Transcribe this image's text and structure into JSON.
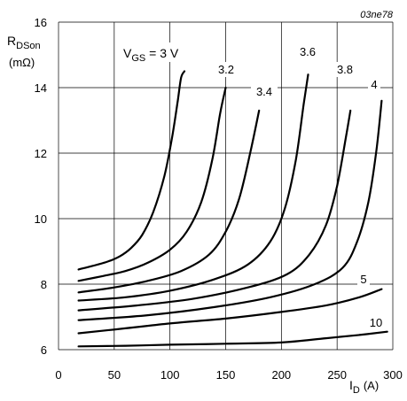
{
  "chart_data": {
    "type": "line",
    "figure_code": "03ne78",
    "ylabel_main": "R",
    "ylabel_sub": "DSon",
    "yunit": "(mΩ)",
    "xlabel_main": "I",
    "xlabel_sub": "D",
    "xunit": "(A)",
    "xlim": [
      0,
      300
    ],
    "ylim": [
      6,
      16
    ],
    "x_ticks": [
      0,
      50,
      100,
      150,
      200,
      250,
      300
    ],
    "y_ticks": [
      6,
      8,
      10,
      12,
      14,
      16
    ],
    "grid": true,
    "vgs_prefix_main": "V",
    "vgs_prefix_sub": "GS",
    "vgs_prefix_rest": " = 3 V",
    "series": [
      {
        "name": "3",
        "label": "",
        "x": [
          18,
          30,
          45,
          55,
          65,
          75,
          85,
          95,
          102,
          107,
          110,
          113
        ],
        "y": [
          8.45,
          8.55,
          8.7,
          8.85,
          9.1,
          9.5,
          10.2,
          11.3,
          12.5,
          13.6,
          14.3,
          14.5
        ]
      },
      {
        "name": "3.2",
        "label": "3.2",
        "x": [
          18,
          40,
          60,
          80,
          100,
          115,
          128,
          138,
          145,
          150
        ],
        "y": [
          8.1,
          8.25,
          8.4,
          8.65,
          9.05,
          9.6,
          10.5,
          11.8,
          13.2,
          14.0
        ]
      },
      {
        "name": "3.4",
        "label": "3.4",
        "x": [
          18,
          50,
          80,
          110,
          135,
          150,
          162,
          172,
          180
        ],
        "y": [
          7.75,
          7.9,
          8.1,
          8.4,
          8.9,
          9.6,
          10.6,
          12.0,
          13.3
        ]
      },
      {
        "name": "3.6",
        "label": "3.6",
        "x": [
          18,
          60,
          100,
          140,
          170,
          190,
          203,
          213,
          220,
          224
        ],
        "y": [
          7.5,
          7.6,
          7.8,
          8.15,
          8.6,
          9.3,
          10.3,
          11.8,
          13.5,
          14.4
        ]
      },
      {
        "name": "3.8",
        "label": "3.8",
        "x": [
          18,
          70,
          120,
          170,
          205,
          225,
          240,
          250,
          258,
          262
        ],
        "y": [
          7.2,
          7.35,
          7.55,
          7.9,
          8.3,
          8.9,
          9.8,
          11.0,
          12.5,
          13.3
        ]
      },
      {
        "name": "4",
        "label": "4",
        "x": [
          18,
          80,
          140,
          190,
          230,
          255,
          268,
          278,
          285,
          290
        ],
        "y": [
          6.9,
          7.05,
          7.3,
          7.6,
          8.0,
          8.5,
          9.3,
          10.5,
          12.0,
          13.6
        ]
      },
      {
        "name": "5",
        "label": "5",
        "x": [
          18,
          60,
          100,
          150,
          200,
          240,
          270,
          290
        ],
        "y": [
          6.5,
          6.65,
          6.8,
          6.95,
          7.15,
          7.35,
          7.6,
          7.85
        ]
      },
      {
        "name": "10",
        "label": "10",
        "x": [
          18,
          60,
          100,
          150,
          200,
          240,
          270,
          295
        ],
        "y": [
          6.1,
          6.12,
          6.15,
          6.18,
          6.22,
          6.35,
          6.45,
          6.55
        ]
      }
    ]
  }
}
